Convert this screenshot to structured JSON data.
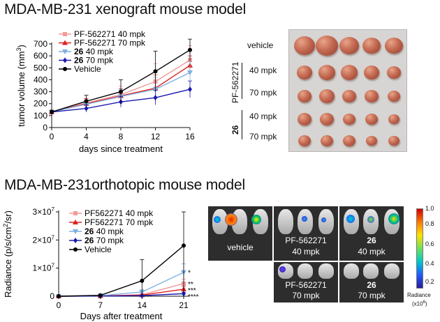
{
  "headings": {
    "xenograft": "MDA-MB-231 xenograft mouse model",
    "orthotopic": "MDA-MB-231orthotopic mouse model"
  },
  "chart_data": [
    {
      "type": "line",
      "title": "",
      "xlabel": "days since treatment",
      "ylabel": "tumor volume (mm³)",
      "ylabel_parts": {
        "main": "tumor volume (mm",
        "sup": "3",
        "close": ")"
      },
      "x": [
        0,
        4,
        8,
        12,
        16
      ],
      "xlim": [
        0,
        16
      ],
      "ylim": [
        0,
        700
      ],
      "xticks": [
        "0",
        "4",
        "8",
        "12",
        "16"
      ],
      "yticks": [
        "0",
        "100",
        "200",
        "300",
        "400",
        "500",
        "600",
        "700"
      ],
      "legend_position": "top-left",
      "series": [
        {
          "name": "PF-562271 40 mpk",
          "name_bold": "",
          "name_rest": "PF-562271 40 mpk",
          "color": "#f29a9a",
          "marker": "square",
          "values": [
            130,
            205,
            275,
            385,
            565
          ],
          "errors": [
            15,
            40,
            70,
            150,
            120
          ]
        },
        {
          "name": "PF-562271 70 mpk",
          "name_bold": "",
          "name_rest": "PF-562271 70 mpk",
          "color": "#e02020",
          "marker": "triangle-up",
          "values": [
            130,
            200,
            265,
            330,
            520
          ],
          "errors": [
            15,
            40,
            60,
            110,
            80
          ]
        },
        {
          "name": "26 40 mpk",
          "name_bold": "26",
          "name_rest": " 40 mpk",
          "color": "#7fb0e0",
          "marker": "triangle-down",
          "values": [
            130,
            195,
            260,
            320,
            460
          ],
          "errors": [
            15,
            35,
            60,
            100,
            90
          ]
        },
        {
          "name": "26 70 mpk",
          "name_bold": "26",
          "name_rest": " 70 mpk",
          "color": "#1a1ab0",
          "marker": "diamond",
          "values": [
            130,
            160,
            215,
            250,
            320
          ],
          "errors": [
            15,
            30,
            45,
            60,
            70
          ]
        },
        {
          "name": "Vehicle",
          "name_bold": "",
          "name_rest": "Vehicle",
          "color": "#000000",
          "marker": "circle",
          "values": [
            130,
            220,
            300,
            470,
            650
          ],
          "errors": [
            15,
            50,
            100,
            170,
            90
          ]
        }
      ]
    },
    {
      "type": "line",
      "title": "",
      "xlabel": "Days after treatment",
      "ylabel": "Radiance (p/s/cm²/sr)",
      "ylabel_parts": {
        "main": "Radiance (p/s/cm",
        "sup": "2",
        "close": "/sr)"
      },
      "x": [
        0,
        7,
        14,
        21
      ],
      "xlim": [
        0,
        21
      ],
      "ylim": [
        0,
        30000000
      ],
      "xticks": [
        "0",
        "7",
        "14",
        "21"
      ],
      "yticks": [
        {
          "value": 0,
          "base": "0",
          "exp": ""
        },
        {
          "value": 10000000,
          "base": "1×10",
          "exp": "7"
        },
        {
          "value": 20000000,
          "base": "2×10",
          "exp": "7"
        },
        {
          "value": 30000000,
          "base": "3×10",
          "exp": "7"
        }
      ],
      "legend_position": "top-left",
      "significance": [
        "*",
        "**",
        "***",
        "****"
      ],
      "series": [
        {
          "name": "PF562271 40 mpk",
          "name_bold": "",
          "name_rest": "PF562271 40 mpk",
          "color": "#f29a9a",
          "marker": "square",
          "values": [
            0,
            100000,
            500000,
            4500000
          ],
          "errors": [
            0,
            50000,
            200000,
            1500000
          ],
          "sig": "**"
        },
        {
          "name": "PF562271 70 mpk",
          "name_bold": "",
          "name_rest": "PF562271 70 mpk",
          "color": "#e02020",
          "marker": "triangle-up",
          "values": [
            0,
            100000,
            400000,
            2500000
          ],
          "errors": [
            0,
            50000,
            200000,
            1000000
          ],
          "sig": "***"
        },
        {
          "name": "26 40 mpk",
          "name_bold": "26",
          "name_rest": " 40 mpk",
          "color": "#7fb0e0",
          "marker": "triangle-down",
          "values": [
            0,
            200000,
            1500000,
            8500000
          ],
          "errors": [
            0,
            100000,
            800000,
            3000000
          ],
          "sig": "*"
        },
        {
          "name": "26 70 mpk",
          "name_bold": "26",
          "name_rest": " 70 mpk",
          "color": "#1a1ab0",
          "marker": "diamond",
          "values": [
            0,
            50000,
            200000,
            900000
          ],
          "errors": [
            0,
            30000,
            100000,
            500000
          ],
          "sig": "****"
        },
        {
          "name": "Vehicle",
          "name_bold": "",
          "name_rest": "Vehicle",
          "color": "#000000",
          "marker": "circle",
          "values": [
            0,
            300000,
            5500000,
            18000000
          ],
          "errors": [
            0,
            200000,
            7500000,
            17000000
          ],
          "sig": ""
        }
      ]
    }
  ],
  "tumor_photo": {
    "rows": [
      "vehicle",
      "40 mpk",
      "70 mpk",
      "40 mpk",
      "70 mpk"
    ],
    "group_pf": "PF-562271",
    "group_26": "26"
  },
  "imaging": {
    "labels": {
      "vehicle": "vehicle",
      "pf40_line1": "PF-562271",
      "pf40_line2": "40 mpk",
      "c26_40_line1": "26",
      "c26_40_line2": "40 mpk",
      "pf70_line1": "PF-562271",
      "pf70_line2": "70 mpk",
      "c26_70_line1": "26",
      "c26_70_line2": "70 mpk"
    },
    "colorbar": {
      "ticks": [
        "1.0",
        "0.8",
        "0.6",
        "0.4",
        "0.2"
      ],
      "caption": "Radiance",
      "unit_base": "(x10",
      "unit_exp": "6",
      "unit_close": ")"
    }
  }
}
